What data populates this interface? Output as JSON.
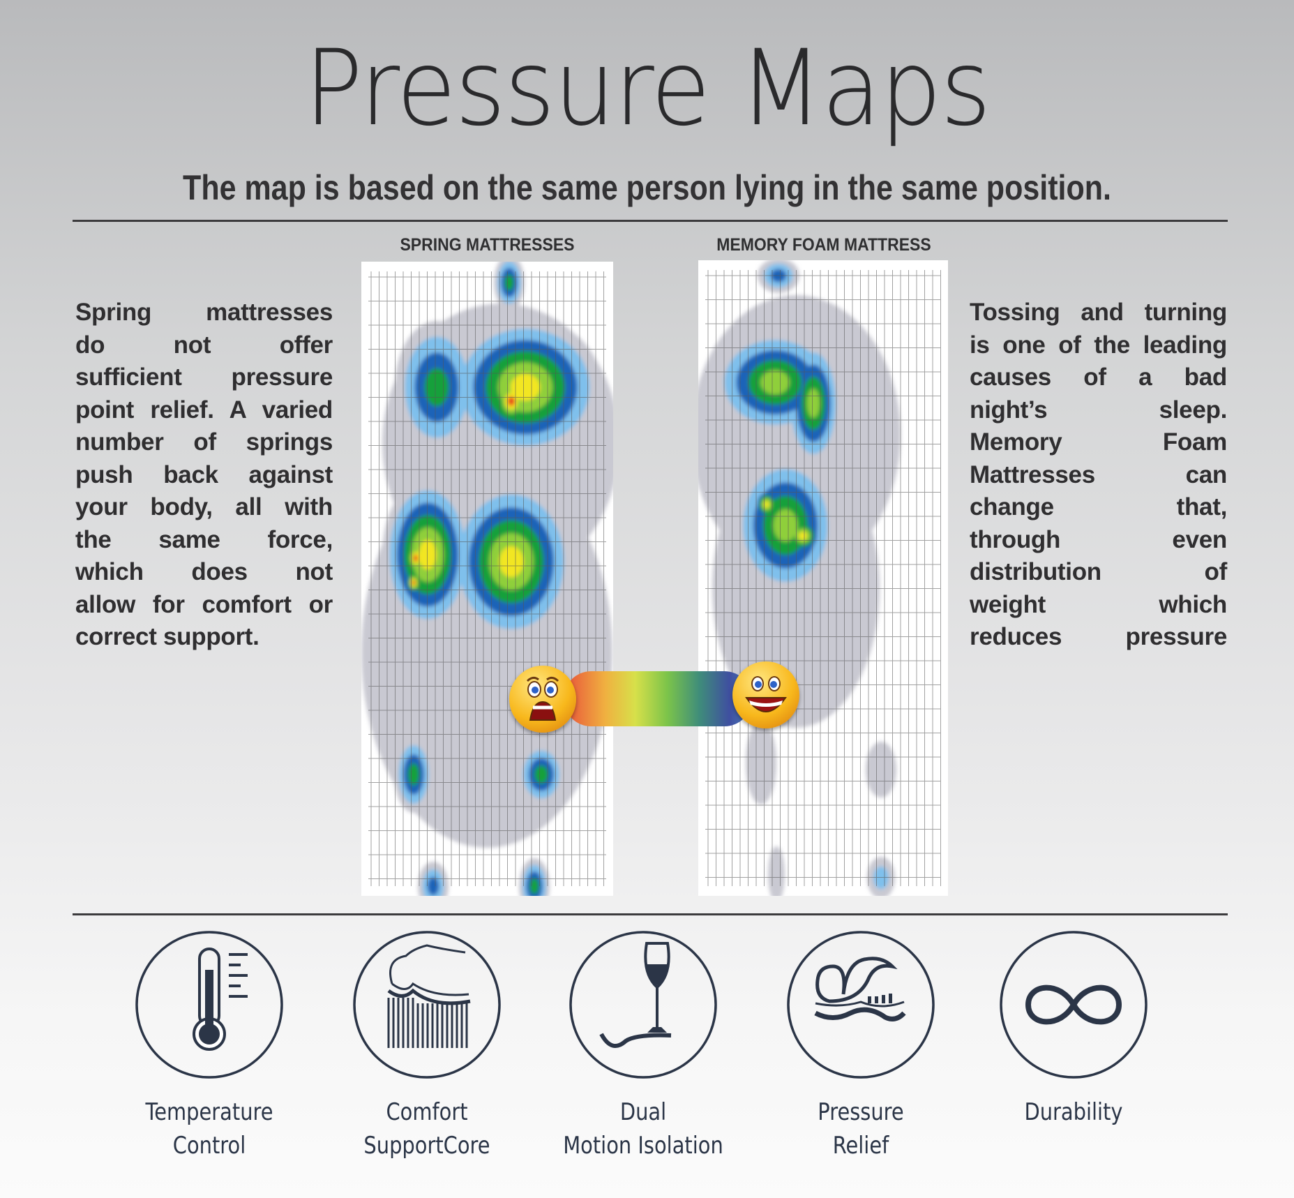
{
  "header": {
    "title": "Pressure Maps",
    "subtitle": "The map is based on the same person lying in the same position."
  },
  "maps": {
    "spring_label": "SPRING MATTRESSES",
    "foam_label": "MEMORY FOAM MATTRESS",
    "pressure_scale": {
      "low_end": "happy-face-icon",
      "high_end": "scared-face-icon",
      "colors": [
        "#e8503a",
        "#f0b040",
        "#d7e04a",
        "#7cc44a",
        "#3f8d7a",
        "#3f4fa0",
        "#4a7fc0"
      ]
    }
  },
  "left_text": {
    "lines": [
      "Spring mattresses",
      "do not offer",
      "sufficient pressure",
      "point relief. A varied",
      "number of springs",
      "push back against",
      "your body, all with",
      "the same force,",
      "which does not",
      "allow for comfort or",
      "correct support."
    ]
  },
  "right_text": {
    "lines": [
      "Tossing and turning",
      "is one of the leading",
      "causes of a bad",
      "night’s sleep.",
      "Memory Foam",
      "Mattresses can",
      "change that,",
      "through even",
      "distribution of",
      "weight which",
      "reduces pressure"
    ]
  },
  "features": [
    {
      "icon": "thermometer-icon",
      "line1": "Temperature",
      "line2": "Control"
    },
    {
      "icon": "spring-core-icon",
      "line1": "Comfort",
      "line2": "SupportCore"
    },
    {
      "icon": "wine-glass-icon",
      "line1": "Dual",
      "line2": "Motion Isolation"
    },
    {
      "icon": "pressure-relief-icon",
      "line1": "Pressure",
      "line2": "Relief"
    },
    {
      "icon": "infinity-icon",
      "line1": "Durability",
      "line2": ""
    }
  ],
  "colors": {
    "icon": "#2b3547",
    "text": "#2e2d2e"
  }
}
